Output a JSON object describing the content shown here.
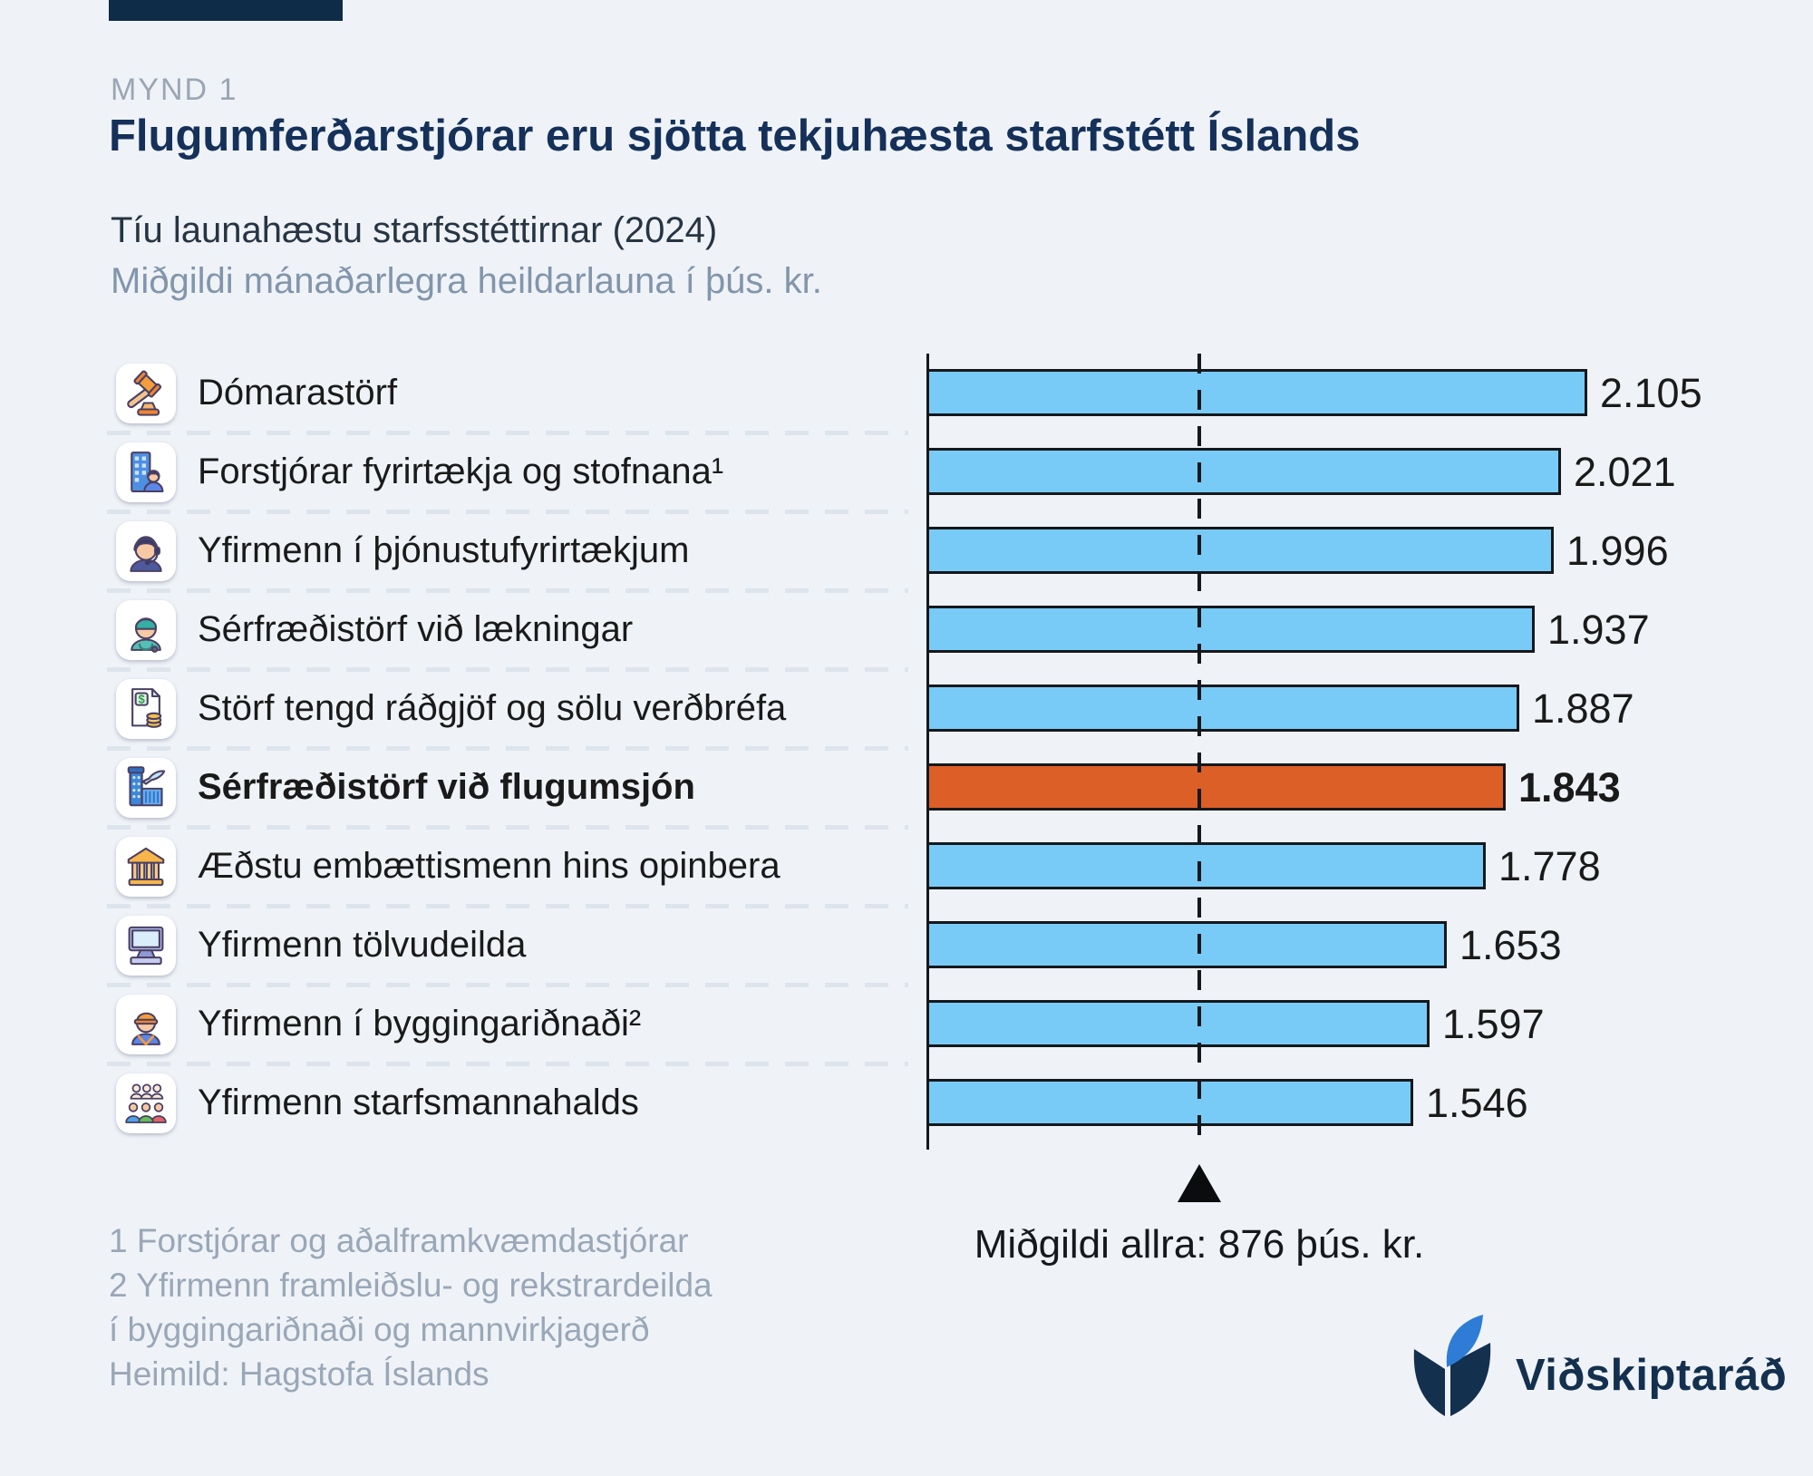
{
  "figure_label": "MYND 1",
  "title": "Flugumferðarstjórar eru sjötta tekjuhæsta starfstétt Íslands",
  "subtitle": "Tíu launahæstu starfsstéttirnar (2024)",
  "subtitle2": "Miðgildi mánaðarlegra heildarlauna í þús. kr.",
  "chart_data": {
    "type": "bar",
    "orientation": "horizontal",
    "unit": "þús. kr.",
    "xlim": [
      0,
      2105
    ],
    "grid": false,
    "categories": [
      "Dómarastörf",
      "Forstjórar fyrirtækja og stofnana¹",
      "Yfirmenn í þjónustufyrirtækjum",
      "Sérfræðistörf við lækningar",
      "Störf tengd ráðgjöf og sölu verðbréfa",
      "Sérfræðistörf við flugumsjón",
      "Æðstu embættismenn hins opinbera",
      "Yfirmenn tölvudeilda",
      "Yfirmenn í byggingariðnaði²",
      "Yfirmenn starfsmannahalds"
    ],
    "values": [
      2105,
      2021,
      1996,
      1937,
      1887,
      1843,
      1778,
      1653,
      1597,
      1546
    ],
    "display_values": [
      "2.105",
      "2.021",
      "1.996",
      "1.937",
      "1.887",
      "1.843",
      "1.778",
      "1.653",
      "1.597",
      "1.546"
    ],
    "highlight_index": 5,
    "icons": [
      "gavel-icon",
      "ceo-building-icon",
      "service-manager-icon",
      "surgeon-icon",
      "securities-document-icon",
      "airport-icon",
      "bank-icon",
      "computer-icon",
      "construction-worker-icon",
      "people-group-icon"
    ],
    "colors": {
      "bar": "#79CBF7",
      "highlight": "#DC5F28",
      "bar_border": "#15181C",
      "background": "#EFF3F8",
      "accent_navy": "#14304F"
    },
    "median_line": {
      "value": 876,
      "label": "Miðgildi allra: 876 þús. kr."
    }
  },
  "footnotes": [
    "1 Forstjórar og aðalframkvæmdastjórar",
    "2 Yfirmenn framleiðslu- og rekstrardeilda",
    "í byggingariðnaði og mannvirkjagerð",
    "Heimild: Hagstofa Íslands"
  ],
  "logo": {
    "text": "Viðskiptaráð"
  }
}
